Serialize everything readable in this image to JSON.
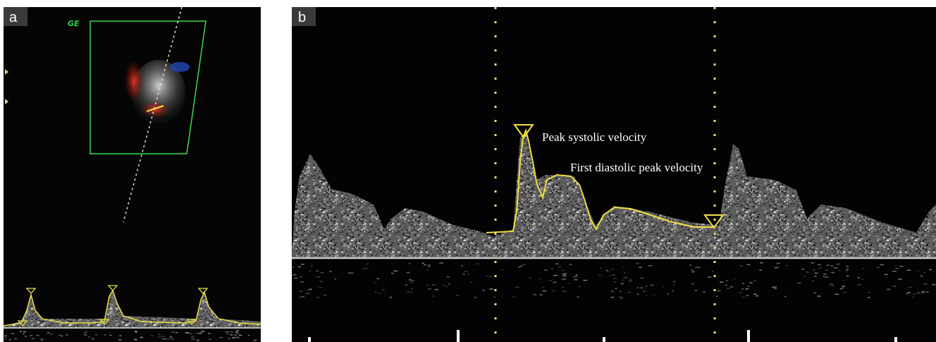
{
  "panels": [
    {
      "label": "a",
      "logo": "GE"
    },
    {
      "label": "b",
      "annotations": [
        "Peak systolic velocity",
        "First diastolic peak velocity"
      ]
    }
  ]
}
